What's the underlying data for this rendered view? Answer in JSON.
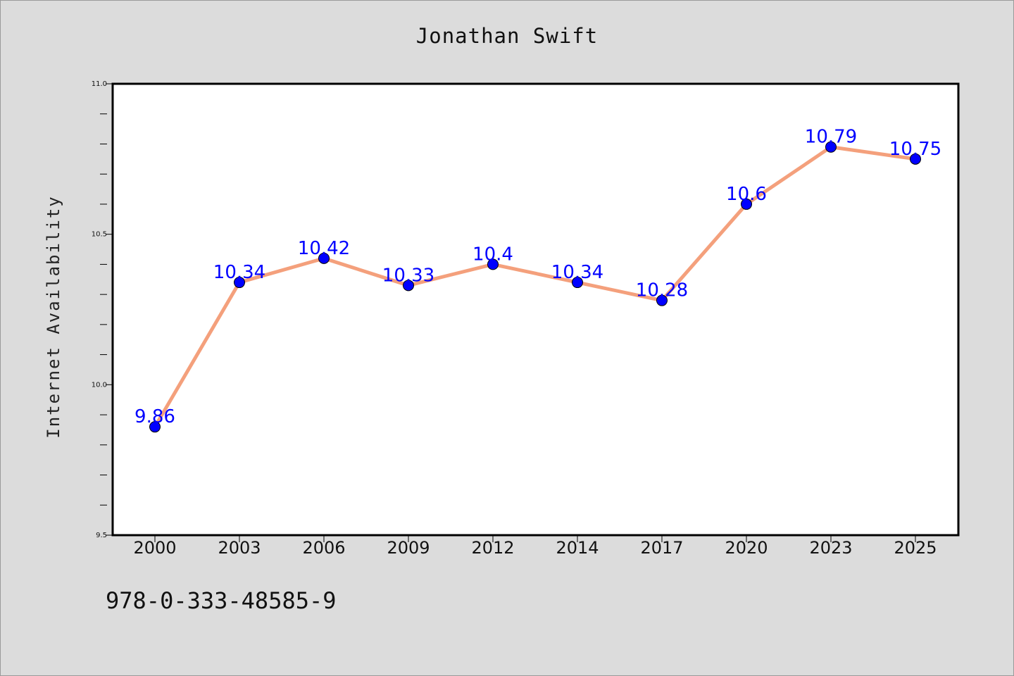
{
  "chart_data": {
    "type": "line",
    "title": "Jonathan Swift",
    "xlabel": "",
    "ylabel": "Internet Availability",
    "categories": [
      "2000",
      "2003",
      "2006",
      "2009",
      "2012",
      "2014",
      "2017",
      "2020",
      "2023",
      "2025"
    ],
    "series": [
      {
        "values": [
          9.86,
          10.34,
          10.42,
          10.33,
          10.4,
          10.34,
          10.28,
          10.6,
          10.79,
          10.75
        ],
        "data_labels": [
          "9.86",
          "10.34",
          "10.42",
          "10.33",
          "10.4",
          "10.34",
          "10.28",
          "10.6",
          "10.79",
          "10.75"
        ],
        "line_color": "#f4a07c",
        "marker_color": "#0000ff"
      }
    ],
    "ylim": [
      9.5,
      11.0
    ],
    "yticks": [
      "9.5",
      "10.0",
      "10.5",
      "11.0"
    ],
    "grid": false,
    "legend": "none"
  },
  "footer": {
    "code": "978-0-333-48585-9"
  },
  "colors": {
    "background": "#dcdcdc",
    "plot_background": "#ffffff",
    "line": "#f4a07c",
    "marker": "#0000ff",
    "data_label": "#0000ff"
  }
}
